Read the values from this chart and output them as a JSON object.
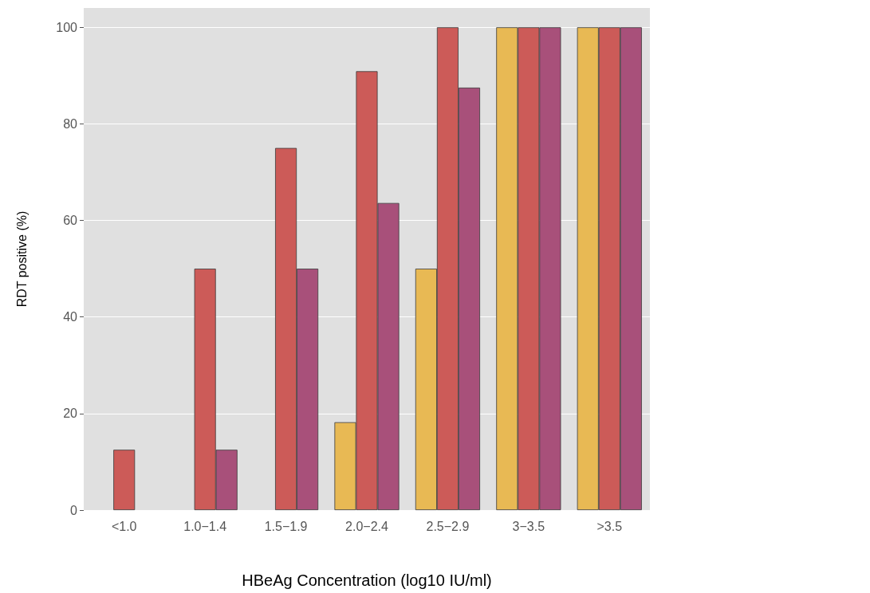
{
  "chart_data": {
    "type": "bar",
    "xlabel": "HBeAg Concentration (log10 IU/ml)",
    "ylabel": "RDT positive (%)",
    "categories": [
      "<1.0",
      "1.0−1.4",
      "1.5−1.9",
      "2.0−2.4",
      "2.5−2.9",
      "3−3.5",
      ">3.5"
    ],
    "series": [
      {
        "color": "#e8b954",
        "values": [
          0,
          0,
          0,
          18.2,
          50,
          100,
          100
        ]
      },
      {
        "color": "#cc5b58",
        "values": [
          12.5,
          50,
          75,
          90.9,
          100,
          100,
          100
        ]
      },
      {
        "color": "#a8507a",
        "values": [
          0,
          12.5,
          50,
          63.6,
          87.5,
          100,
          100
        ]
      }
    ],
    "ylim": [
      0,
      104
    ],
    "yticks": [
      0,
      20,
      40,
      60,
      80,
      100
    ],
    "grid": "y"
  }
}
